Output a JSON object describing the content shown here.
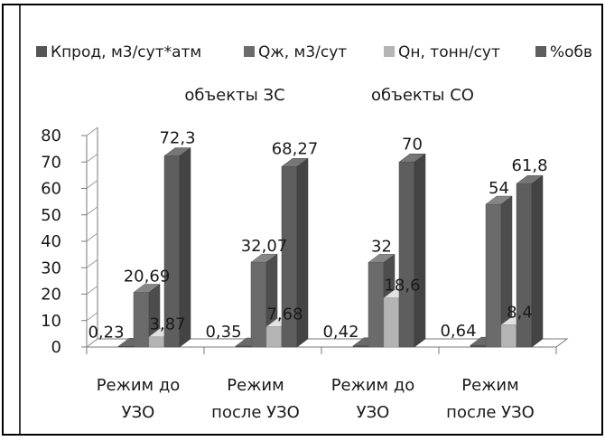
{
  "chart_data": {
    "type": "bar",
    "style": "3d-clustered-column",
    "categories": [
      [
        "Режим до",
        "УЗО"
      ],
      [
        "Режим",
        "после УЗО"
      ],
      [
        "Режим до",
        "УЗО"
      ],
      [
        "Режим",
        "после УЗО"
      ]
    ],
    "group_labels": [
      "объекты ЗС",
      "объекты СО"
    ],
    "series": [
      {
        "name": "Кпрод, м3/сут*атм",
        "values": [
          0.23,
          0.35,
          0.42,
          0.64
        ],
        "labels": [
          "0,23",
          "0,35",
          "0,42",
          "0,64"
        ],
        "color": "#555555"
      },
      {
        "name": "Qж, м3/сут",
        "values": [
          20.69,
          32.07,
          32,
          54
        ],
        "labels": [
          "20,69",
          "32,07",
          "32",
          "54"
        ],
        "color": "#6b6b6b"
      },
      {
        "name": "Qн, тонн/сут",
        "values": [
          3.87,
          7.68,
          18.6,
          8.4
        ],
        "labels": [
          "3,87",
          "7,68",
          "18,6",
          "8,4"
        ],
        "color": "#b4b4b4"
      },
      {
        "name": "%обв",
        "values": [
          72.3,
          68.27,
          70,
          61.8
        ],
        "labels": [
          "72,3",
          "68,27",
          "70",
          "61,8"
        ],
        "color": "#5e5e5e"
      }
    ],
    "yticks": [
      "0",
      "10",
      "20",
      "30",
      "40",
      "50",
      "60",
      "70",
      "80"
    ],
    "ylim": [
      0,
      80
    ],
    "grid": false,
    "legend": "top"
  }
}
